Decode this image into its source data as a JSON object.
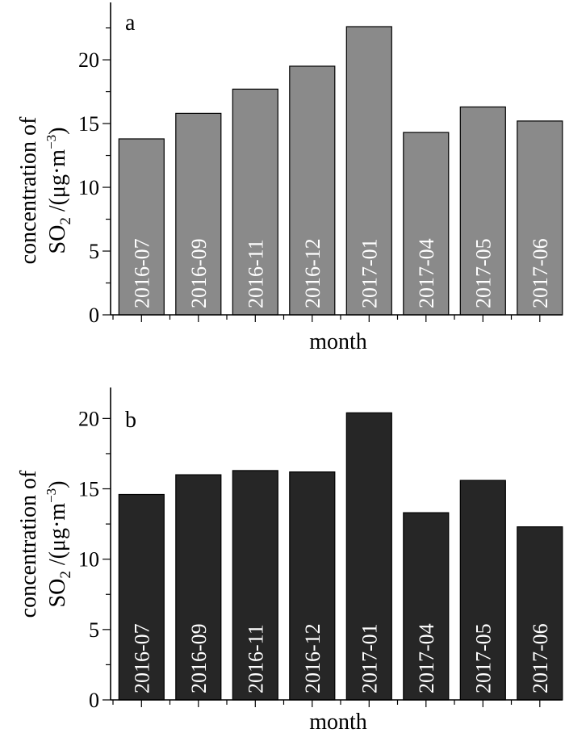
{
  "chart_data": [
    {
      "type": "bar",
      "panel_label": "a",
      "categories": [
        "2016-07",
        "2016-09",
        "2016-11",
        "2016-12",
        "2017-01",
        "2017-04",
        "2017-05",
        "2017-06"
      ],
      "values": [
        13.8,
        15.8,
        17.7,
        19.5,
        22.6,
        14.3,
        16.3,
        15.2
      ],
      "xlabel": "month",
      "ylabel_line1": "concentration of",
      "ylabel_line2": {
        "main": "SO",
        "sub": "2",
        "units_pre": " /(μg·m",
        "sup": "−3",
        "units_post": ")"
      },
      "ylim": [
        0,
        24.5
      ],
      "yticks": [
        0,
        5,
        10,
        15,
        20
      ],
      "bar_color": "#8a8a8a"
    },
    {
      "type": "bar",
      "panel_label": "b",
      "categories": [
        "2016-07",
        "2016-09",
        "2016-11",
        "2016-12",
        "2017-01",
        "2017-04",
        "2017-05",
        "2017-06"
      ],
      "values": [
        14.6,
        16.0,
        16.3,
        16.2,
        20.4,
        13.3,
        15.6,
        12.3
      ],
      "xlabel": "month",
      "ylabel_line1": "concentration of",
      "ylabel_line2": {
        "main": "SO",
        "sub": "2",
        "units_pre": " /(μg·m",
        "sup": "−3",
        "units_post": ")"
      },
      "ylim": [
        0,
        22.2
      ],
      "yticks": [
        0,
        5,
        10,
        15,
        20
      ],
      "bar_color": "#262626"
    }
  ]
}
